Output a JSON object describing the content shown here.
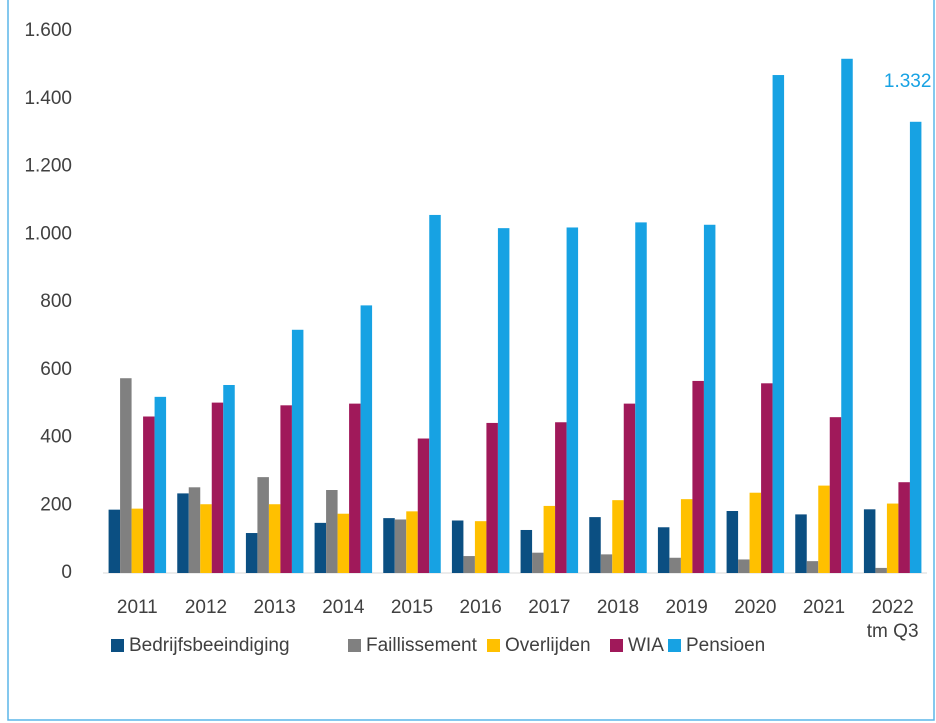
{
  "chart_data": {
    "type": "bar",
    "categories": [
      "2011",
      "2012",
      "2013",
      "2014",
      "2015",
      "2016",
      "2017",
      "2018",
      "2019",
      "2020",
      "2021",
      "2022\ntm Q3"
    ],
    "series": [
      {
        "name": "Bedrijfsbeeindiging",
        "color": "#0b4f82",
        "values": [
          187,
          235,
          118,
          148,
          162,
          155,
          127,
          165,
          135,
          183,
          173,
          188
        ]
      },
      {
        "name": "Faillissement",
        "color": "#808080",
        "values": [
          575,
          253,
          283,
          245,
          158,
          50,
          60,
          55,
          45,
          40,
          35,
          15
        ]
      },
      {
        "name": "Overlijden",
        "color": "#ffc000",
        "values": [
          190,
          203,
          203,
          175,
          182,
          153,
          198,
          215,
          218,
          237,
          258,
          205
        ]
      },
      {
        "name": "WIA",
        "color": "#a0195a",
        "values": [
          462,
          503,
          495,
          500,
          397,
          443,
          445,
          500,
          567,
          560,
          460,
          268
        ]
      },
      {
        "name": "Pensioen",
        "color": "#17a2e3",
        "values": [
          520,
          555,
          718,
          790,
          1057,
          1018,
          1020,
          1035,
          1028,
          1470,
          1518,
          1332
        ],
        "value_labels": [
          null,
          null,
          null,
          null,
          null,
          null,
          null,
          null,
          null,
          null,
          null,
          "1.332"
        ]
      }
    ],
    "ylim": [
      0,
      1600
    ],
    "yticks": [
      0,
      200,
      400,
      600,
      800,
      {
        "value": 1000,
        "label": "1.000"
      },
      {
        "value": 1200,
        "label": "1.200"
      },
      {
        "value": 1400,
        "label": "1.400"
      },
      {
        "value": 1600,
        "label": "1.600"
      }
    ],
    "grid": false,
    "legend": "bottom"
  }
}
